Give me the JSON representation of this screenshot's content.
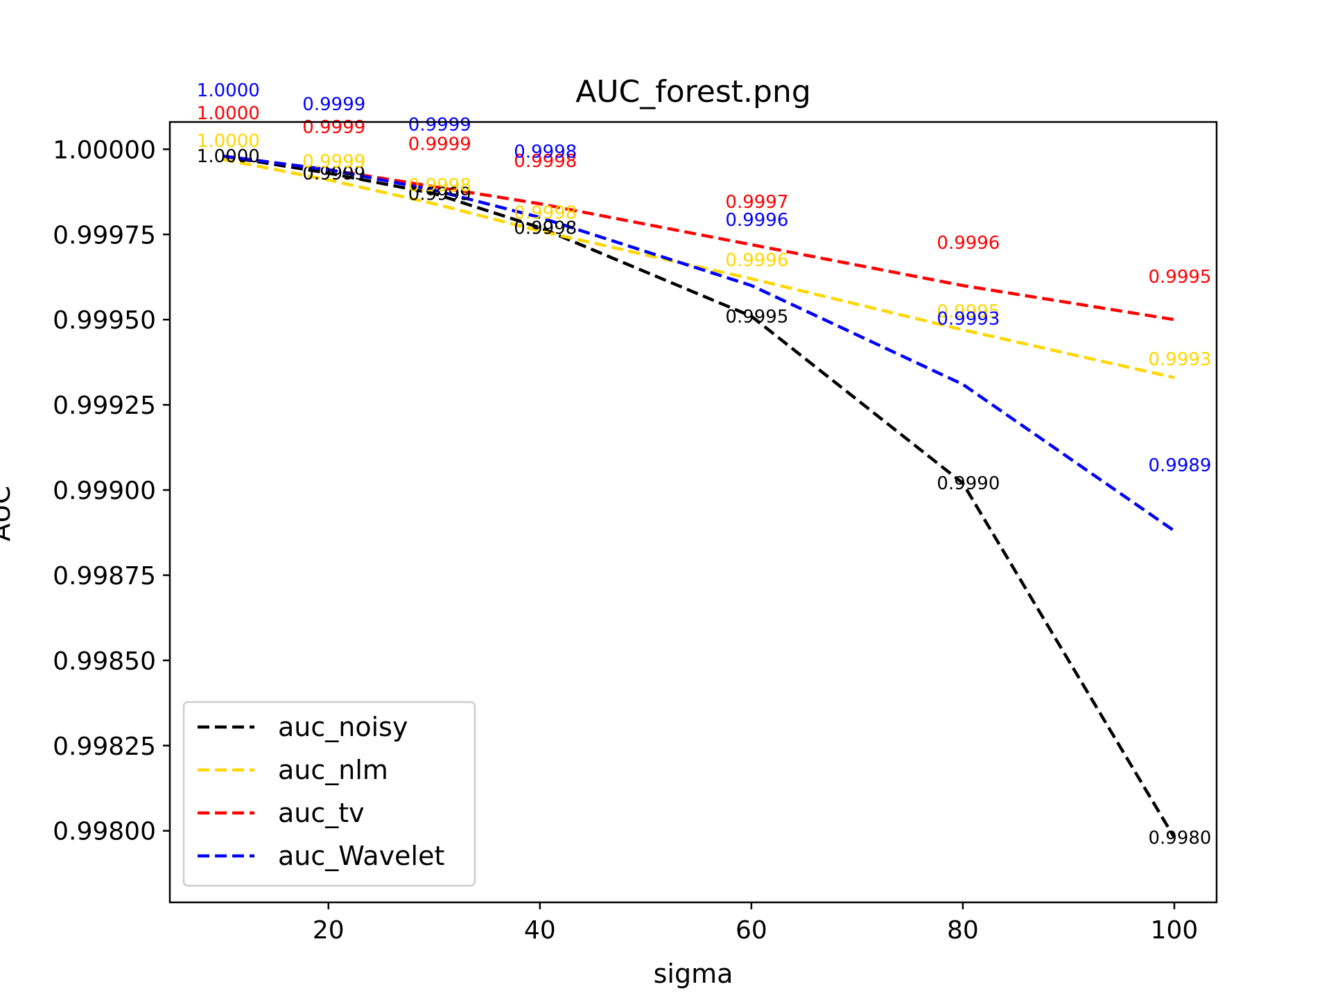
{
  "chart_data": {
    "type": "line",
    "title": "AUC_forest.png",
    "xlabel": "sigma",
    "ylabel": "AUC",
    "xlim": [
      5,
      104
    ],
    "ylim": [
      0.99779,
      1.00008
    ],
    "xticks": [
      20,
      40,
      60,
      80,
      100
    ],
    "xtick_labels": [
      "20",
      "40",
      "60",
      "80",
      "100"
    ],
    "yticks": [
      0.998,
      0.99825,
      0.9985,
      0.99875,
      0.999,
      0.99925,
      0.9995,
      0.99975,
      1.0
    ],
    "ytick_labels": [
      "0.99800",
      "0.99825",
      "0.99850",
      "0.99875",
      "0.99900",
      "0.99925",
      "0.99950",
      "0.99975",
      "1.00000"
    ],
    "x": [
      10,
      20,
      30,
      40,
      60,
      80,
      100
    ],
    "legend_position": "lower-left",
    "series": [
      {
        "name": "auc_noisy",
        "color": "#000000",
        "values": [
          0.99998,
          0.99993,
          0.99987,
          0.99977,
          0.99951,
          0.99902,
          0.99798
        ],
        "labels": [
          "1.0000",
          "0.9999",
          "0.9999",
          "0.9998",
          "0.9995",
          "0.9990",
          "0.9980"
        ]
      },
      {
        "name": "auc_nlm",
        "color": "#FFD700",
        "values": [
          0.99997,
          0.99991,
          0.99984,
          0.99976,
          0.99962,
          0.99947,
          0.99933
        ],
        "labels": [
          "1.0000",
          "0.9999",
          "0.9998",
          "0.9998",
          "0.9996",
          "0.9995",
          "0.9993"
        ]
      },
      {
        "name": "auc_tv",
        "color": "#FF0000",
        "values": [
          0.99998,
          0.99994,
          0.99989,
          0.99984,
          0.99972,
          0.9996,
          0.9995
        ],
        "labels": [
          "1.0000",
          "0.9999",
          "0.9999",
          "0.9998",
          "0.9997",
          "0.9996",
          "0.9995"
        ]
      },
      {
        "name": "auc_Wavelet",
        "color": "#0000FF",
        "values": [
          0.99998,
          0.99994,
          0.99988,
          0.9998,
          0.9996,
          0.99931,
          0.99888
        ],
        "labels": [
          "1.0000",
          "0.9999",
          "0.9999",
          "0.9998",
          "0.9996",
          "0.9993",
          "0.9989"
        ]
      }
    ]
  }
}
